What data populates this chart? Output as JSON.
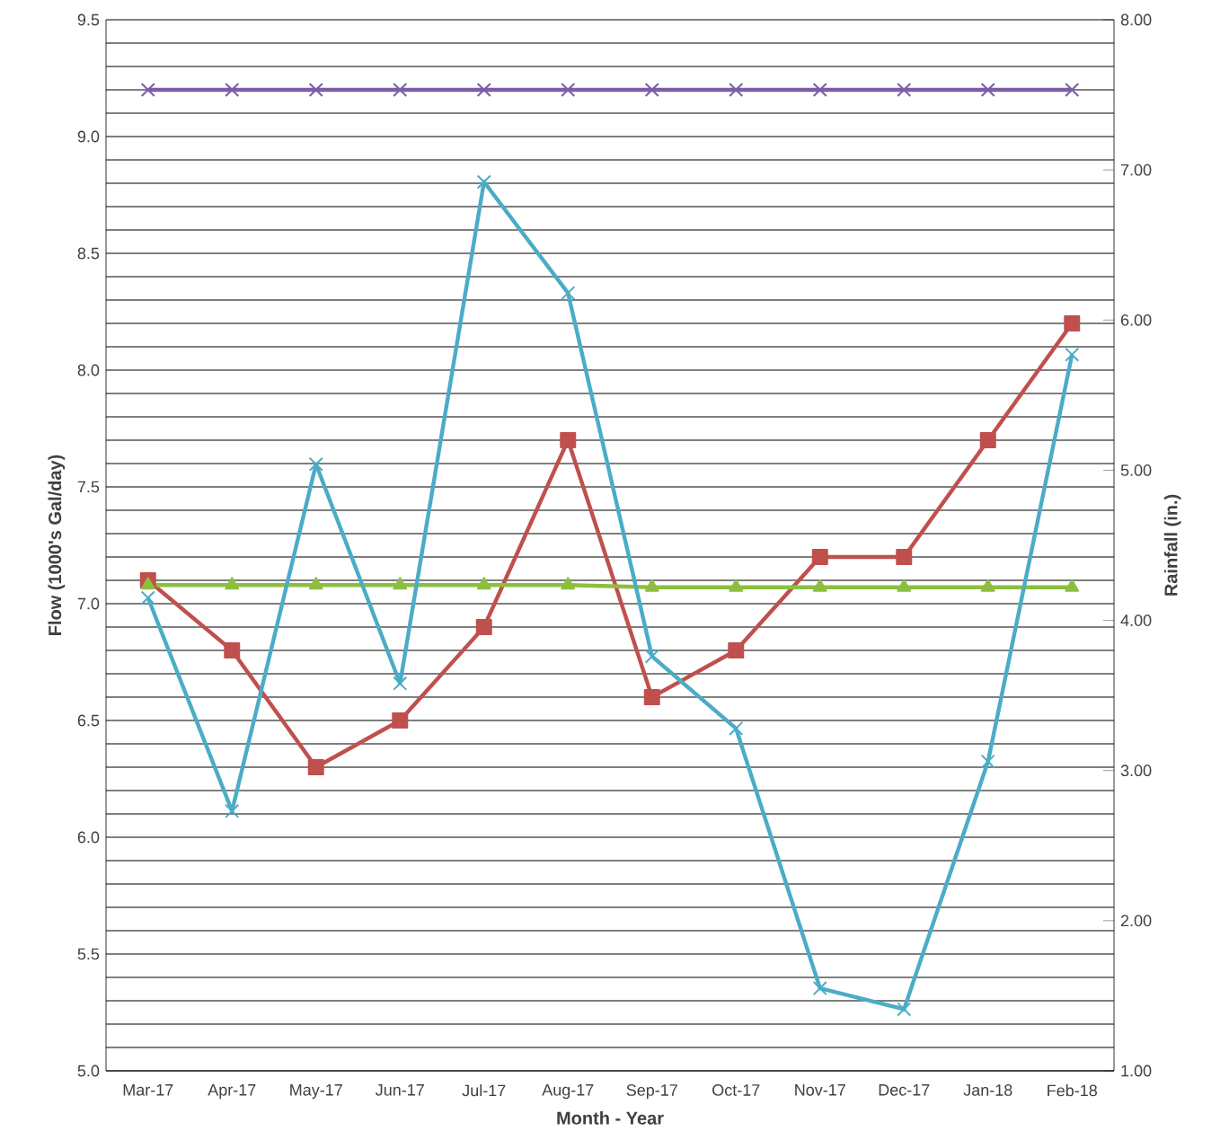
{
  "chart_data": {
    "type": "line",
    "xlabel": "Month - Year",
    "ylabel": "Flow (1000's Gal/day)",
    "y2label": "Rainfall (in.)",
    "categories": [
      "Mar-17",
      "Apr-17",
      "May-17",
      "Jun-17",
      "Jul-17",
      "Aug-17",
      "Sep-17",
      "Oct-17",
      "Nov-17",
      "Dec-17",
      "Jan-18",
      "Feb-18"
    ],
    "series": [
      {
        "color": "#7b5ea7",
        "marker": "cross",
        "values": [
          9.2,
          9.2,
          9.2,
          9.2,
          9.2,
          9.2,
          9.2,
          9.2,
          9.2,
          9.2,
          9.2,
          9.2
        ]
      },
      {
        "color": "#c0504d",
        "marker": "square",
        "values": [
          7.1,
          6.8,
          6.3,
          6.5,
          6.9,
          7.7,
          6.6,
          6.8,
          7.2,
          7.2,
          7.7,
          8.2
        ]
      },
      {
        "color": "#8cbf3f",
        "marker": "triangle",
        "values": [
          7.08,
          7.08,
          7.08,
          7.08,
          7.08,
          7.08,
          7.07,
          7.07,
          7.07,
          7.07,
          7.07,
          7.07
        ]
      },
      {
        "color": "#4bacc6",
        "marker": "cross",
        "axis": "y2",
        "values": [
          4.15,
          2.73,
          5.04,
          3.58,
          6.92,
          6.18,
          3.76,
          3.28,
          1.55,
          1.41,
          3.06,
          5.77
        ]
      }
    ],
    "ylim": [
      5.0,
      9.5
    ],
    "yticks": [
      {
        "value": 5.0,
        "label": "5.0"
      },
      {
        "value": 5.1,
        "label": null
      },
      {
        "value": 5.2,
        "label": null
      },
      {
        "value": 5.3,
        "label": null
      },
      {
        "value": 5.4,
        "label": null
      },
      {
        "value": 5.5,
        "label": "5.5"
      },
      {
        "value": 5.6,
        "label": null
      },
      {
        "value": 5.7,
        "label": null
      },
      {
        "value": 5.8,
        "label": null
      },
      {
        "value": 5.9,
        "label": null
      },
      {
        "value": 6.0,
        "label": "6.0"
      },
      {
        "value": 6.1,
        "label": null
      },
      {
        "value": 6.2,
        "label": null
      },
      {
        "value": 6.3,
        "label": null
      },
      {
        "value": 6.4,
        "label": null
      },
      {
        "value": 6.5,
        "label": "6.5"
      },
      {
        "value": 6.6,
        "label": null
      },
      {
        "value": 6.7,
        "label": null
      },
      {
        "value": 6.8,
        "label": null
      },
      {
        "value": 6.9,
        "label": null
      },
      {
        "value": 7.0,
        "label": "7.0"
      },
      {
        "value": 7.1,
        "label": null
      },
      {
        "value": 7.2,
        "label": null
      },
      {
        "value": 7.3,
        "label": null
      },
      {
        "value": 7.4,
        "label": null
      },
      {
        "value": 7.5,
        "label": "7.5"
      },
      {
        "value": 7.6,
        "label": null
      },
      {
        "value": 7.7,
        "label": null
      },
      {
        "value": 7.8,
        "label": null
      },
      {
        "value": 7.9,
        "label": null
      },
      {
        "value": 8.0,
        "label": "8.0"
      },
      {
        "value": 8.1,
        "label": null
      },
      {
        "value": 8.2,
        "label": null
      },
      {
        "value": 8.3,
        "label": null
      },
      {
        "value": 8.4,
        "label": null
      },
      {
        "value": 8.5,
        "label": "8.5"
      },
      {
        "value": 8.6,
        "label": null
      },
      {
        "value": 8.7,
        "label": null
      },
      {
        "value": 8.8,
        "label": null
      },
      {
        "value": 8.9,
        "label": null
      },
      {
        "value": 9.0,
        "label": "9.0"
      },
      {
        "value": 9.1,
        "label": null
      },
      {
        "value": 9.2,
        "label": null
      },
      {
        "value": 9.3,
        "label": null
      },
      {
        "value": 9.4,
        "label": null
      },
      {
        "value": 9.5,
        "label": "9.5"
      }
    ],
    "y2lim": [
      1.0,
      8.0
    ],
    "y2ticks": [
      {
        "value": 1.0,
        "label": "1.00"
      },
      {
        "value": 2.0,
        "label": "2.00"
      },
      {
        "value": 3.0,
        "label": "3.00"
      },
      {
        "value": 4.0,
        "label": "4.00"
      },
      {
        "value": 5.0,
        "label": "5.00"
      },
      {
        "value": 6.0,
        "label": "6.00"
      },
      {
        "value": 7.0,
        "label": "7.00"
      },
      {
        "value": 8.0,
        "label": "8.00"
      }
    ],
    "grid": "y"
  }
}
